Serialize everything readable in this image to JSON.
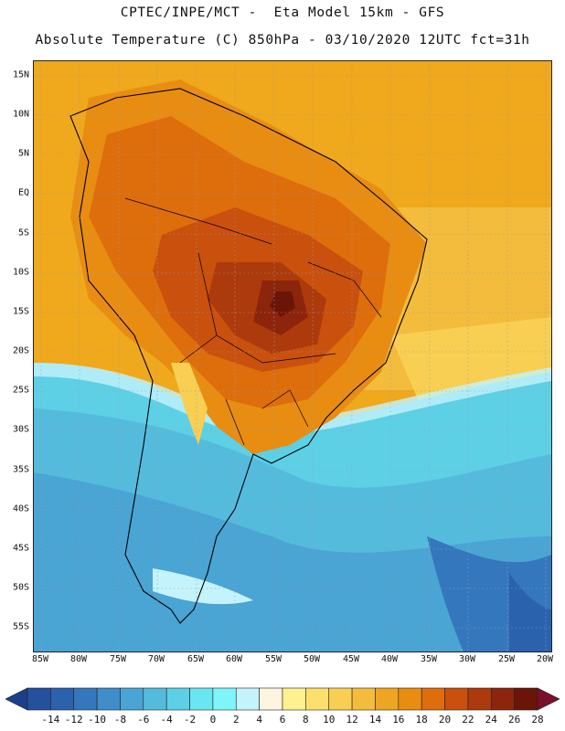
{
  "header": {
    "title_line1": "CPTEC/INPE/MCT -  Eta Model 15km - GFS",
    "title_line2": "Absolute Temperature (C) 850hPa - 03/10/2020 12UTC fct=31h"
  },
  "axes": {
    "lat_labels": [
      "15N",
      "10N",
      "5N",
      "EQ",
      "5S",
      "10S",
      "15S",
      "20S",
      "25S",
      "30S",
      "35S",
      "40S",
      "45S",
      "50S",
      "55S"
    ],
    "lon_labels": [
      "85W",
      "80W",
      "75W",
      "70W",
      "65W",
      "60W",
      "55W",
      "50W",
      "45W",
      "40W",
      "35W",
      "30W",
      "25W",
      "20W"
    ]
  },
  "legend": {
    "labels": [
      "-14",
      "-12",
      "-10",
      "-8",
      "-6",
      "-4",
      "-2",
      "0",
      "2",
      "4",
      "6",
      "8",
      "10",
      "12",
      "14",
      "16",
      "18",
      "20",
      "22",
      "24",
      "26",
      "28"
    ],
    "colors": [
      "#1c3f8c",
      "#24509e",
      "#2b62ae",
      "#3577bd",
      "#3f8dc9",
      "#4aa4d4",
      "#55bbdd",
      "#5dd0e6",
      "#6ae6f0",
      "#7ff5fa",
      "#c4f3fb",
      "#fff4e0",
      "#fff18f",
      "#fbe06d",
      "#f8cf52",
      "#f3bc3c",
      "#eea622",
      "#e88d12",
      "#de6d0c",
      "#c9500d",
      "#ad3a0c",
      "#8c250b",
      "#6a1508",
      "#7a0f2e"
    ]
  }
}
